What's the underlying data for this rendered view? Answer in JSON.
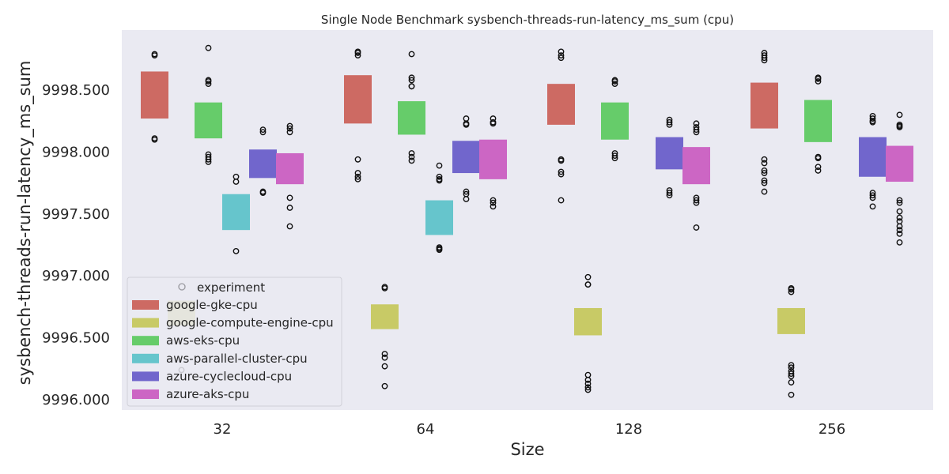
{
  "chart_data": {
    "type": "boxplot",
    "title": "Single Node Benchmark sysbench-threads-run-latency_ms_sum (cpu)",
    "xlabel": "Size",
    "ylabel": "sysbench-threads-run-latency_ms_sum",
    "categories": [
      "32",
      "64",
      "128",
      "256"
    ],
    "ylim": [
      9995.9,
      9998.95
    ],
    "yticks": [
      9996.0,
      9996.5,
      9997.0,
      9997.5,
      9998.0,
      9998.5
    ],
    "ytick_labels": [
      "9996.000",
      "9996.500",
      "9997.000",
      "9997.500",
      "9998.000",
      "9998.500"
    ],
    "grid": false,
    "legend": {
      "placement": "lower-left",
      "title": "experiment",
      "entries": [
        "google-gke-cpu",
        "google-compute-engine-cpu",
        "aws-eks-cpu",
        "aws-parallel-cluster-cpu",
        "azure-cyclecloud-cpu",
        "azure-aks-cpu"
      ]
    },
    "colors": {
      "google-gke-cpu": "#cd6a63",
      "google-compute-engine-cpu": "#c8ca66",
      "aws-eks-cpu": "#66cc6a",
      "aws-parallel-cluster-cpu": "#66c5cc",
      "azure-cyclecloud-cpu": "#7166cc",
      "azure-aks-cpu": "#cc66c4",
      "plot_bg": "#eaeaf2"
    },
    "series": [
      {
        "name": "google-gke-cpu",
        "boxes": [
          {
            "category": "32",
            "q1": 9998.27,
            "q3": 9998.65,
            "outliers": [
              9998.78,
              9998.79,
              9998.1,
              9998.11
            ]
          },
          {
            "category": "64",
            "q1": 9998.23,
            "q3": 9998.62,
            "outliers": [
              9998.78,
              9998.8,
              9998.81,
              9997.94,
              9997.83,
              9997.8,
              9997.78
            ]
          },
          {
            "category": "128",
            "q1": 9998.22,
            "q3": 9998.55,
            "outliers": [
              9998.76,
              9998.78,
              9998.81,
              9997.93,
              9997.94,
              9997.84,
              9997.82,
              9997.61
            ]
          },
          {
            "category": "256",
            "q1": 9998.19,
            "q3": 9998.56,
            "outliers": [
              9998.74,
              9998.76,
              9998.78,
              9998.8,
              9997.94,
              9997.91,
              9997.85,
              9997.83,
              9997.77,
              9997.75,
              9997.68
            ]
          }
        ]
      },
      {
        "name": "google-compute-engine-cpu",
        "boxes": [
          {
            "category": "32",
            "q1": 9996.6,
            "q3": 9996.8,
            "outliers": [
              9996.24
            ]
          },
          {
            "category": "64",
            "q1": 9996.57,
            "q3": 9996.77,
            "outliers": [
              9996.9,
              9996.91,
              9996.37,
              9996.34,
              9996.27,
              9996.11
            ]
          },
          {
            "category": "128",
            "q1": 9996.52,
            "q3": 9996.74,
            "outliers": [
              9996.99,
              9996.93,
              9996.93,
              9996.2,
              9996.16,
              9996.13,
              9996.1,
              9996.08
            ]
          },
          {
            "category": "256",
            "q1": 9996.53,
            "q3": 9996.74,
            "outliers": [
              9996.87,
              9996.89,
              9996.9,
              9996.28,
              9996.26,
              9996.23,
              9996.21,
              9996.19,
              9996.14,
              9996.04
            ]
          }
        ]
      },
      {
        "name": "aws-eks-cpu",
        "boxes": [
          {
            "category": "32",
            "q1": 9998.11,
            "q3": 9998.4,
            "outliers": [
              9998.84,
              9998.58,
              9998.57,
              9998.55,
              9997.98,
              9997.96,
              9997.94,
              9997.92
            ]
          },
          {
            "category": "64",
            "q1": 9998.14,
            "q3": 9998.41,
            "outliers": [
              9998.79,
              9998.6,
              9998.58,
              9998.53,
              9998.53,
              9997.99,
              9997.96,
              9997.93
            ]
          },
          {
            "category": "128",
            "q1": 9998.1,
            "q3": 9998.4,
            "outliers": [
              9998.58,
              9998.57,
              9998.55,
              9997.99,
              9997.97,
              9997.95
            ]
          },
          {
            "category": "256",
            "q1": 9998.08,
            "q3": 9998.42,
            "outliers": [
              9998.6,
              9998.59,
              9998.57,
              9997.96,
              9997.95,
              9997.88,
              9997.85
            ]
          }
        ]
      },
      {
        "name": "aws-parallel-cluster-cpu",
        "boxes": [
          {
            "category": "32",
            "q1": 9997.37,
            "q3": 9997.66,
            "outliers": [
              9997.8,
              9997.76,
              9997.2
            ]
          },
          {
            "category": "64",
            "q1": 9997.33,
            "q3": 9997.61,
            "outliers": [
              9997.89,
              9997.8,
              9997.78,
              9997.77,
              9997.23,
              9997.22,
              9997.21
            ]
          }
        ]
      },
      {
        "name": "azure-cyclecloud-cpu",
        "boxes": [
          {
            "category": "32",
            "q1": 9997.79,
            "q3": 9998.02,
            "outliers": [
              9998.18,
              9998.16,
              9997.68,
              9997.67
            ]
          },
          {
            "category": "64",
            "q1": 9997.83,
            "q3": 9998.09,
            "outliers": [
              9998.27,
              9998.23,
              9998.22,
              9997.68,
              9997.66,
              9997.62
            ]
          },
          {
            "category": "128",
            "q1": 9997.86,
            "q3": 9998.12,
            "outliers": [
              9998.26,
              9998.24,
              9998.22,
              9997.69,
              9997.67,
              9997.65
            ]
          },
          {
            "category": "256",
            "q1": 9997.8,
            "q3": 9998.12,
            "outliers": [
              9998.29,
              9998.27,
              9998.25,
              9998.24,
              9997.67,
              9997.65,
              9997.63,
              9997.56
            ]
          }
        ]
      },
      {
        "name": "azure-aks-cpu",
        "boxes": [
          {
            "category": "32",
            "q1": 9997.74,
            "q3": 9997.99,
            "outliers": [
              9998.21,
              9998.19,
              9998.16,
              9997.63,
              9997.55,
              9997.4
            ]
          },
          {
            "category": "64",
            "q1": 9997.78,
            "q3": 9998.1,
            "outliers": [
              9998.27,
              9998.24,
              9998.23,
              9997.61,
              9997.59,
              9997.56
            ]
          },
          {
            "category": "128",
            "q1": 9997.74,
            "q3": 9998.04,
            "outliers": [
              9998.23,
              9998.2,
              9998.18,
              9998.16,
              9997.63,
              9997.61,
              9997.59,
              9997.39
            ]
          },
          {
            "category": "256",
            "q1": 9997.76,
            "q3": 9998.05,
            "outliers": [
              9998.3,
              9998.22,
              9998.21,
              9998.2,
              9997.61,
              9997.59,
              9997.52,
              9997.47,
              9997.44,
              9997.4,
              9997.37,
              9997.34,
              9997.27
            ]
          }
        ]
      }
    ]
  }
}
